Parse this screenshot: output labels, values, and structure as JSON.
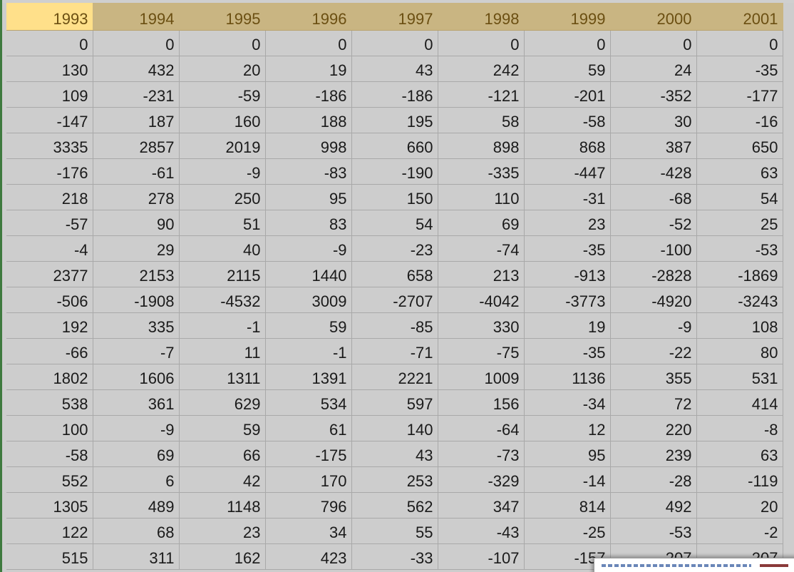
{
  "columns": [
    "1993",
    "1994",
    "1995",
    "1996",
    "1997",
    "1998",
    "1999",
    "2000",
    "2001"
  ],
  "active_column": 0,
  "rows": [
    [
      "0",
      "0",
      "0",
      "0",
      "0",
      "0",
      "0",
      "0",
      "0"
    ],
    [
      "130",
      "432",
      "20",
      "19",
      "43",
      "242",
      "59",
      "24",
      "-35"
    ],
    [
      "109",
      "-231",
      "-59",
      "-186",
      "-186",
      "-121",
      "-201",
      "-352",
      "-177"
    ],
    [
      "-147",
      "187",
      "160",
      "188",
      "195",
      "58",
      "-58",
      "30",
      "-16"
    ],
    [
      "3335",
      "2857",
      "2019",
      "998",
      "660",
      "898",
      "868",
      "387",
      "650"
    ],
    [
      "-176",
      "-61",
      "-9",
      "-83",
      "-190",
      "-335",
      "-447",
      "-428",
      "63"
    ],
    [
      "218",
      "278",
      "250",
      "95",
      "150",
      "110",
      "-31",
      "-68",
      "54"
    ],
    [
      "-57",
      "90",
      "51",
      "83",
      "54",
      "69",
      "23",
      "-52",
      "25"
    ],
    [
      "-4",
      "29",
      "40",
      "-9",
      "-23",
      "-74",
      "-35",
      "-100",
      "-53"
    ],
    [
      "2377",
      "2153",
      "2115",
      "1440",
      "658",
      "213",
      "-913",
      "-2828",
      "-1869"
    ],
    [
      "-506",
      "-1908",
      "-4532",
      "3009",
      "-2707",
      "-4042",
      "-3773",
      "-4920",
      "-3243"
    ],
    [
      "192",
      "335",
      "-1",
      "59",
      "-85",
      "330",
      "19",
      "-9",
      "108"
    ],
    [
      "-66",
      "-7",
      "11",
      "-1",
      "-71",
      "-75",
      "-35",
      "-22",
      "80"
    ],
    [
      "1802",
      "1606",
      "1311",
      "1391",
      "2221",
      "1009",
      "1136",
      "355",
      "531"
    ],
    [
      "538",
      "361",
      "629",
      "534",
      "597",
      "156",
      "-34",
      "72",
      "414"
    ],
    [
      "100",
      "-9",
      "59",
      "61",
      "140",
      "-64",
      "12",
      "220",
      "-8"
    ],
    [
      "-58",
      "69",
      "66",
      "-175",
      "43",
      "-73",
      "95",
      "239",
      "63"
    ],
    [
      "552",
      "6",
      "42",
      "170",
      "253",
      "-329",
      "-14",
      "-28",
      "-119"
    ],
    [
      "1305",
      "489",
      "1148",
      "796",
      "562",
      "347",
      "814",
      "492",
      "20"
    ],
    [
      "122",
      "68",
      "23",
      "34",
      "55",
      "-43",
      "-25",
      "-53",
      "-2"
    ],
    [
      "515",
      "311",
      "162",
      "423",
      "-33",
      "-107",
      "-157",
      "207",
      "207"
    ]
  ]
}
